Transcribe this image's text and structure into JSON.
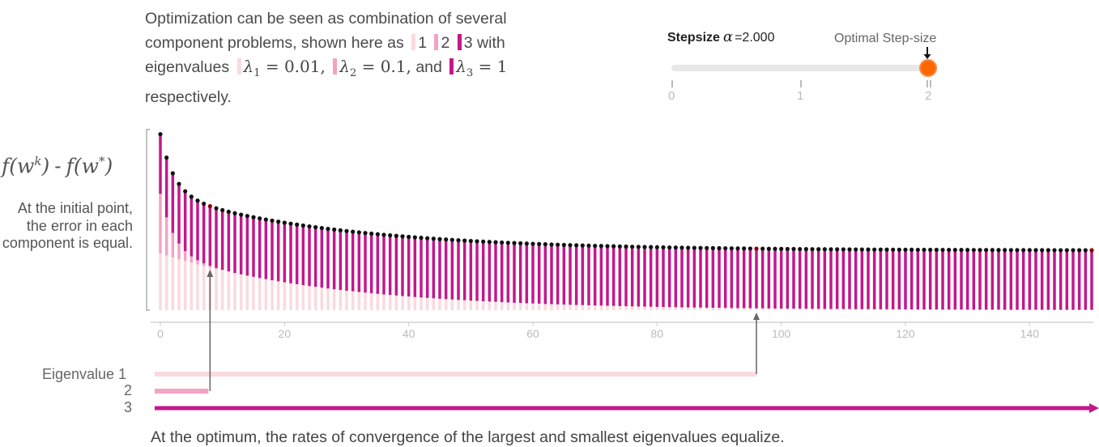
{
  "intro": {
    "line1": "Optimization can be seen as combination of several",
    "line2_a": "component problems, shown here as",
    "comp1": "1",
    "comp2": "2",
    "comp3": "3",
    "line2_b": "with",
    "line3_a": "eigenvalues",
    "lambda1": "λ",
    "lambda1_sub": "1",
    "lambda1_val": "= 0.01,",
    "lambda2": "λ",
    "lambda2_sub": "2",
    "lambda2_val": "= 0.1,",
    "and": "and",
    "lambda3": "λ",
    "lambda3_sub": "3",
    "lambda3_val": "= 1",
    "line4": "respectively."
  },
  "stepsize": {
    "label": "Stepsize",
    "alpha": "α",
    "value_text": "=2.000",
    "value": 2.0,
    "min": 0,
    "max": 2,
    "optimal_label": "Optimal Step-size",
    "ticks": [
      "0",
      "1",
      "2"
    ]
  },
  "chart": {
    "ylabel_f": "f(w",
    "ylabel_k": "k",
    "ylabel_mid": ")",
    "ylabel_dash": "-",
    "ylabel_f2": "f(w",
    "ylabel_star": "*",
    "ylabel_end": ")",
    "annotation_initial": "At the initial point, the error in each component is equal."
  },
  "chart_data": {
    "type": "bar",
    "stacked": true,
    "title": "",
    "ylabel": "f(w^k) - f(w^*)",
    "xlabel": "",
    "x_ticks": [
      "0",
      "20",
      "40",
      "60",
      "80",
      "100",
      "120",
      "140"
    ],
    "xlim": [
      0,
      150
    ],
    "iterations": 150,
    "series": [
      {
        "name": "Eigenvalue 1",
        "lambda": 0.01,
        "color": "#fadadd",
        "initial": 1,
        "decay_rate": 0.96,
        "floor": 0
      },
      {
        "name": "Eigenvalue 2",
        "lambda": 0.1,
        "color": "#f4a3c2",
        "initial": 1,
        "decay_rate": 0.64,
        "floor": 0
      },
      {
        "name": "Eigenvalue 3",
        "lambda": 1,
        "color": "#c2188b",
        "initial": 1,
        "decay_rate": 1.0,
        "floor": 1
      }
    ],
    "highlight_points": [
      8,
      96,
      150
    ],
    "point_color": "#111111",
    "highlight_color": "#8b0000"
  },
  "bottom": {
    "eigen_label_1": "Eigenvalue 1",
    "eigen_label_2": "2",
    "eigen_label_3": "3",
    "note": "At the optimum, the rates of convergence of the largest and smallest eigenvalues equalize."
  },
  "colors": {
    "c1": "#fadadd",
    "c2": "#f4a3c2",
    "c3": "#c2188b",
    "accent": "#ff6600"
  }
}
